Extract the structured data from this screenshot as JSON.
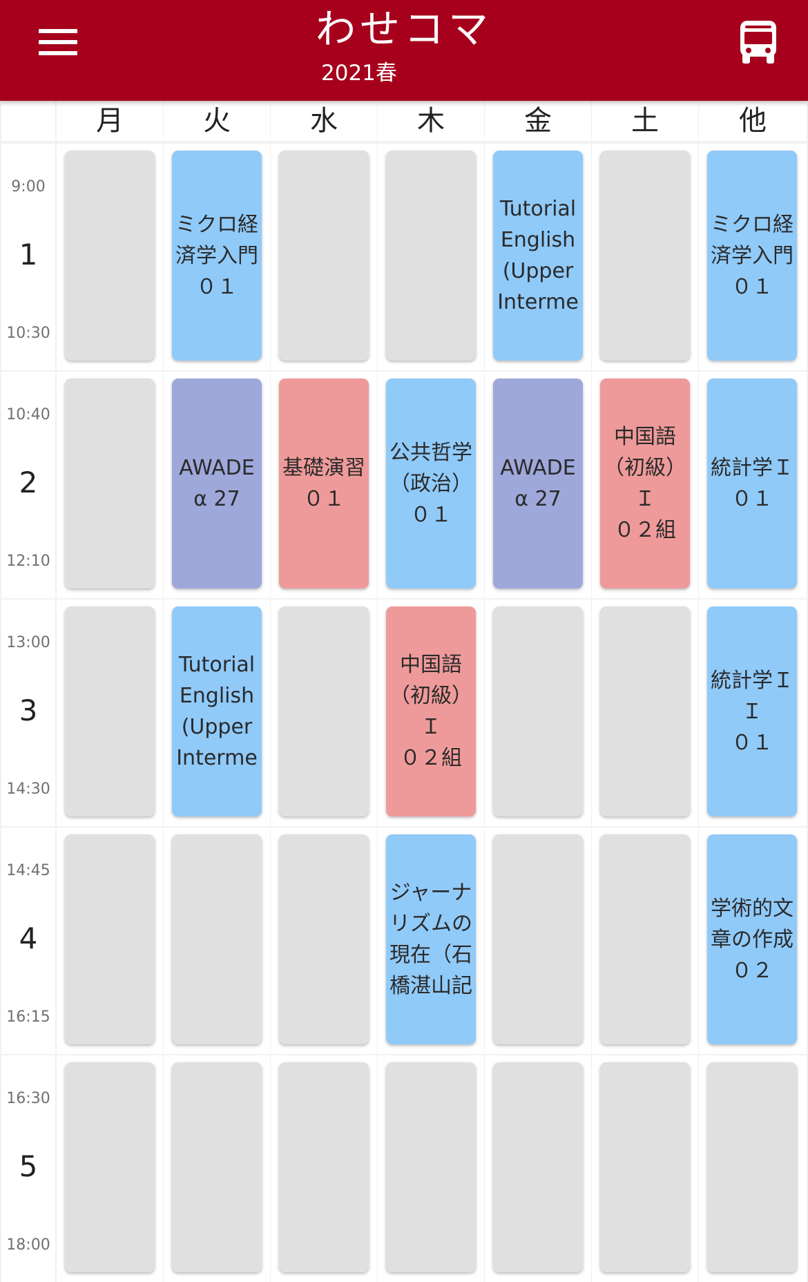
{
  "header": {
    "title": "わせコマ",
    "term": "2021春"
  },
  "colors": {
    "header_bg": "#a6001c",
    "empty": "#e0e0e0",
    "blue": "#90caf9",
    "purple": "#9fa8da",
    "red": "#ef9a9a"
  },
  "days": [
    "月",
    "火",
    "水",
    "木",
    "金",
    "土",
    "他"
  ],
  "periods": [
    {
      "num": "1",
      "start": "9:00",
      "end": "10:30"
    },
    {
      "num": "2",
      "start": "10:40",
      "end": "12:10"
    },
    {
      "num": "3",
      "start": "13:00",
      "end": "14:30"
    },
    {
      "num": "4",
      "start": "14:45",
      "end": "16:15"
    },
    {
      "num": "5",
      "start": "16:30",
      "end": "18:00"
    }
  ],
  "timetable": [
    [
      {
        "text": "",
        "color": "empty"
      },
      {
        "text": "ミクロ経\n済学入門\n０１",
        "color": "blue"
      },
      {
        "text": "",
        "color": "empty"
      },
      {
        "text": "",
        "color": "empty"
      },
      {
        "text": "Tutorial\nEnglish\n(Upper\nInterme",
        "color": "blue"
      },
      {
        "text": "",
        "color": "empty"
      },
      {
        "text": "ミクロ経\n済学入門\n０１",
        "color": "blue"
      }
    ],
    [
      {
        "text": "",
        "color": "empty"
      },
      {
        "text": "AWADE\nα 27",
        "color": "purple"
      },
      {
        "text": "基礎演習\n０１",
        "color": "red"
      },
      {
        "text": "公共哲学\n（政治）\n０１",
        "color": "blue"
      },
      {
        "text": "AWADE\nα 27",
        "color": "purple"
      },
      {
        "text": "中国語\n（初級）Ｉ\n０２組",
        "color": "red"
      },
      {
        "text": "統計学Ｉ\n０１",
        "color": "blue"
      }
    ],
    [
      {
        "text": "",
        "color": "empty"
      },
      {
        "text": "Tutorial\nEnglish\n(Upper\nInterme",
        "color": "blue"
      },
      {
        "text": "",
        "color": "empty"
      },
      {
        "text": "中国語\n（初級）Ｉ\n０２組",
        "color": "red"
      },
      {
        "text": "",
        "color": "empty"
      },
      {
        "text": "",
        "color": "empty"
      },
      {
        "text": "統計学ＩＩ\n０１",
        "color": "blue"
      }
    ],
    [
      {
        "text": "",
        "color": "empty"
      },
      {
        "text": "",
        "color": "empty"
      },
      {
        "text": "",
        "color": "empty"
      },
      {
        "text": "ジャーナ\nリズムの\n現在（石\n橋湛山記",
        "color": "blue"
      },
      {
        "text": "",
        "color": "empty"
      },
      {
        "text": "",
        "color": "empty"
      },
      {
        "text": "学術的文\n章の作成\n０２",
        "color": "blue"
      }
    ],
    [
      {
        "text": "",
        "color": "empty"
      },
      {
        "text": "",
        "color": "empty"
      },
      {
        "text": "",
        "color": "empty"
      },
      {
        "text": "",
        "color": "empty"
      },
      {
        "text": "",
        "color": "empty"
      },
      {
        "text": "",
        "color": "empty"
      },
      {
        "text": "",
        "color": "empty"
      }
    ]
  ]
}
